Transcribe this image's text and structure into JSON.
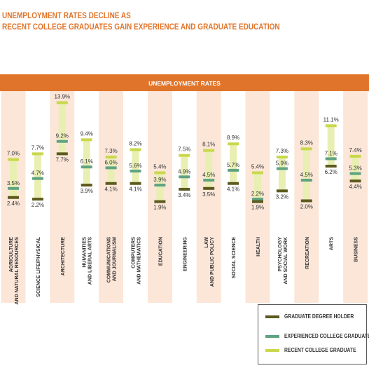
{
  "title": {
    "line1": "UNEMPLOYMENT RATES DECLINE AS",
    "line2": "RECENT COLLEGE GRADUATES GAIN EXPERIENCE AND GRADUATE EDUCATION"
  },
  "colors": {
    "accent": "#e0742a",
    "stripe": "#fbe6d8",
    "bar_fill": "#e9efb2",
    "graduate": "#5c5a1e",
    "experienced": "#5fa383",
    "recent": "#c9d84b"
  },
  "legend": {
    "items": [
      {
        "key": "graduate",
        "label": "GRADUATE DEGREE HOLDER"
      },
      {
        "key": "experienced",
        "label": "EXPERIENCED COLLEGE GRADUATE"
      },
      {
        "key": "recent",
        "label": "RECENT COLLEGE GRADUATE"
      }
    ]
  },
  "chart_data": {
    "type": "range-dot",
    "header": "UNEMPLOYMENT RATES",
    "categories": [
      "AGRICULTURE AND NATURAL RESOURCES",
      "SCIENCE LIFE/PHYSICAL",
      "ARCHITECTURE",
      "HUMANITIES AND LIBERAL ARTS",
      "COMMUNICATIONS AND JOURNALISM",
      "COMPUTERS AND MATHEMATICS",
      "EDUCATION",
      "ENGINEERING",
      "LAW AND PUBLIC POLICY",
      "SOCIAL SCIENCE",
      "HEALTH",
      "PSYCHOLOGY AND SOCIAL WORK",
      "RECREATION",
      "ARTS",
      "BUSINESS"
    ],
    "series": [
      {
        "name": "RECENT COLLEGE GRADUATE",
        "key": "recent",
        "values": [
          7.0,
          7.7,
          13.9,
          9.4,
          7.3,
          8.2,
          5.4,
          7.5,
          8.1,
          8.9,
          5.4,
          7.3,
          8.3,
          11.1,
          7.4
        ]
      },
      {
        "name": "EXPERIENCED COLLEGE GRADUATE",
        "key": "experienced",
        "values": [
          3.5,
          4.7,
          9.2,
          6.1,
          6.0,
          5.6,
          3.9,
          4.9,
          4.5,
          5.7,
          2.2,
          5.9,
          4.5,
          7.1,
          5.3
        ]
      },
      {
        "name": "GRADUATE DEGREE HOLDER",
        "key": "graduate",
        "values": [
          2.4,
          2.2,
          7.7,
          3.9,
          4.1,
          4.1,
          1.9,
          3.4,
          3.5,
          4.1,
          1.9,
          3.2,
          2.0,
          6.2,
          4.4
        ]
      }
    ],
    "labels": {
      "recent": [
        "7.0%",
        "7.7%",
        "13.9%",
        "9.4%",
        "7.3%",
        "8.2%",
        "5.4%",
        "7.5%",
        "8.1%",
        "8.9%",
        "5.4%",
        "7.3%",
        "8.3%",
        "11.1%",
        "7.4%"
      ],
      "experienced": [
        "3.5%",
        "4.7%",
        "9.2%",
        "6.1%",
        "6.0%",
        "5.6%",
        "3.9%",
        "4.9%",
        "4.5%",
        "5.7%",
        "2.2%",
        "5.9%",
        "4.5%",
        "7.1%",
        "5.3%"
      ],
      "graduate": [
        "2.4%",
        "2.2%",
        "7.7%",
        "3.9%",
        "4.1%",
        "4.1%",
        "1.9%",
        "3.4%",
        "3.5%",
        "4.1%",
        "1.9%",
        "3.2%",
        "2.0%",
        "6.2%",
        "4.4%"
      ]
    },
    "grid": false,
    "legend_position": "bottom-right"
  }
}
